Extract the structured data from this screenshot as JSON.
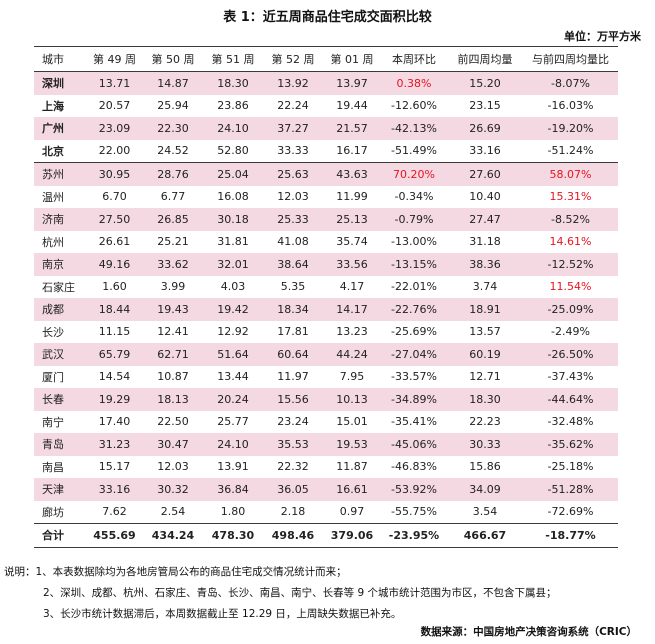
{
  "title": "表 1：近五周商品住宅成交面积比较",
  "unit": "单位：万平方米",
  "headers": [
    "城市",
    "第 49 周",
    "第 50 周",
    "第 51 周",
    "第 52 周",
    "第 01 周",
    "本周环比",
    "前四周均量",
    "与前四周均量比"
  ],
  "rows": [
    {
      "cells": [
        "深圳",
        "13.71",
        "14.87",
        "18.30",
        "13.92",
        "13.97",
        "0.38%",
        "15.20",
        "-8.07%"
      ],
      "tier1": true,
      "red": [
        6
      ]
    },
    {
      "cells": [
        "上海",
        "20.57",
        "25.94",
        "23.86",
        "22.24",
        "19.44",
        "-12.60%",
        "23.15",
        "-16.03%"
      ],
      "tier1": true,
      "red": []
    },
    {
      "cells": [
        "广州",
        "23.09",
        "22.30",
        "24.10",
        "37.27",
        "21.57",
        "-42.13%",
        "26.69",
        "-19.20%"
      ],
      "tier1": true,
      "red": []
    },
    {
      "cells": [
        "北京",
        "22.00",
        "24.52",
        "52.80",
        "33.33",
        "16.17",
        "-51.49%",
        "33.16",
        "-51.24%"
      ],
      "tier1": true,
      "red": []
    },
    {
      "cells": [
        "苏州",
        "30.95",
        "28.76",
        "25.04",
        "25.63",
        "43.63",
        "70.20%",
        "27.60",
        "58.07%"
      ],
      "tier1": false,
      "red": [
        6,
        8
      ]
    },
    {
      "cells": [
        "温州",
        "6.70",
        "6.77",
        "16.08",
        "12.03",
        "11.99",
        "-0.34%",
        "10.40",
        "15.31%"
      ],
      "tier1": false,
      "red": [
        8
      ]
    },
    {
      "cells": [
        "济南",
        "27.50",
        "26.85",
        "30.18",
        "25.33",
        "25.13",
        "-0.79%",
        "27.47",
        "-8.52%"
      ],
      "tier1": false,
      "red": []
    },
    {
      "cells": [
        "杭州",
        "26.61",
        "25.21",
        "31.81",
        "41.08",
        "35.74",
        "-13.00%",
        "31.18",
        "14.61%"
      ],
      "tier1": false,
      "red": [
        8
      ]
    },
    {
      "cells": [
        "南京",
        "49.16",
        "33.62",
        "32.01",
        "38.64",
        "33.56",
        "-13.15%",
        "38.36",
        "-12.52%"
      ],
      "tier1": false,
      "red": []
    },
    {
      "cells": [
        "石家庄",
        "1.60",
        "3.99",
        "4.03",
        "5.35",
        "4.17",
        "-22.01%",
        "3.74",
        "11.54%"
      ],
      "tier1": false,
      "red": [
        8
      ]
    },
    {
      "cells": [
        "成都",
        "18.44",
        "19.43",
        "19.42",
        "18.34",
        "14.17",
        "-22.76%",
        "18.91",
        "-25.09%"
      ],
      "tier1": false,
      "red": []
    },
    {
      "cells": [
        "长沙",
        "11.15",
        "12.41",
        "12.92",
        "17.81",
        "13.23",
        "-25.69%",
        "13.57",
        "-2.49%"
      ],
      "tier1": false,
      "red": []
    },
    {
      "cells": [
        "武汉",
        "65.79",
        "62.71",
        "51.64",
        "60.64",
        "44.24",
        "-27.04%",
        "60.19",
        "-26.50%"
      ],
      "tier1": false,
      "red": []
    },
    {
      "cells": [
        "厦门",
        "14.54",
        "10.87",
        "13.44",
        "11.97",
        "7.95",
        "-33.57%",
        "12.71",
        "-37.43%"
      ],
      "tier1": false,
      "red": []
    },
    {
      "cells": [
        "长春",
        "19.29",
        "18.13",
        "20.24",
        "15.56",
        "10.13",
        "-34.89%",
        "18.30",
        "-44.64%"
      ],
      "tier1": false,
      "red": []
    },
    {
      "cells": [
        "南宁",
        "17.40",
        "22.50",
        "25.77",
        "23.24",
        "15.01",
        "-35.41%",
        "22.23",
        "-32.48%"
      ],
      "tier1": false,
      "red": []
    },
    {
      "cells": [
        "青岛",
        "31.23",
        "30.47",
        "24.10",
        "35.53",
        "19.53",
        "-45.06%",
        "30.33",
        "-35.62%"
      ],
      "tier1": false,
      "red": []
    },
    {
      "cells": [
        "南昌",
        "15.17",
        "12.03",
        "13.91",
        "22.32",
        "11.87",
        "-46.83%",
        "15.86",
        "-25.18%"
      ],
      "tier1": false,
      "red": []
    },
    {
      "cells": [
        "天津",
        "33.16",
        "30.32",
        "36.84",
        "36.05",
        "16.61",
        "-53.92%",
        "34.09",
        "-51.28%"
      ],
      "tier1": false,
      "red": []
    },
    {
      "cells": [
        "廊坊",
        "7.62",
        "2.54",
        "1.80",
        "2.18",
        "0.97",
        "-55.75%",
        "3.54",
        "-72.69%"
      ],
      "tier1": false,
      "red": []
    }
  ],
  "total": [
    "合计",
    "455.69",
    "434.24",
    "478.30",
    "498.46",
    "379.06",
    "-23.95%",
    "466.67",
    "-18.77%"
  ],
  "notes": [
    "说明：1、本表数据除均为各地房管局公布的商品住宅成交情况统计而来；",
    "2、深圳、成都、杭州、石家庄、青岛、长沙、南昌、南宁、长春等 9 个城市统计范围为市区，不包含下属县；",
    "3、长沙市统计数据滞后，本周数据截止至 12.29 日，上周缺失数据已补充。"
  ],
  "source": "数据来源：中国房地产决策咨询系统（CRIC）",
  "colors": {
    "shade": "#f4d9e3",
    "red": "#e8141f",
    "rule": "#3a3a3a"
  }
}
